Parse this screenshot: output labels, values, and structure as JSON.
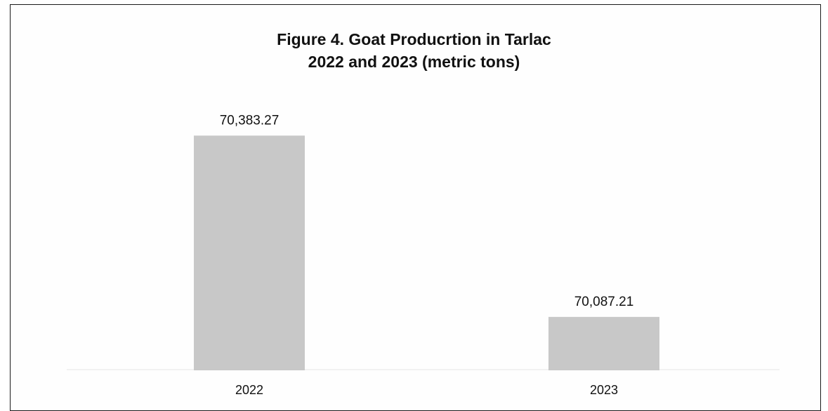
{
  "chart_data": {
    "type": "bar",
    "title": "Figure 4. Goat Producrtion in Tarlac",
    "subtitle": "2022 and 2023 (metric tons)",
    "categories": [
      "2022",
      "2023"
    ],
    "values": [
      70383.27,
      70087.21
    ],
    "value_labels": [
      "70,383.27",
      "70,087.21"
    ],
    "bar_color": "#c8c8c8",
    "ylim": [
      70000,
      70410
    ],
    "grid": false,
    "legend": "none"
  }
}
